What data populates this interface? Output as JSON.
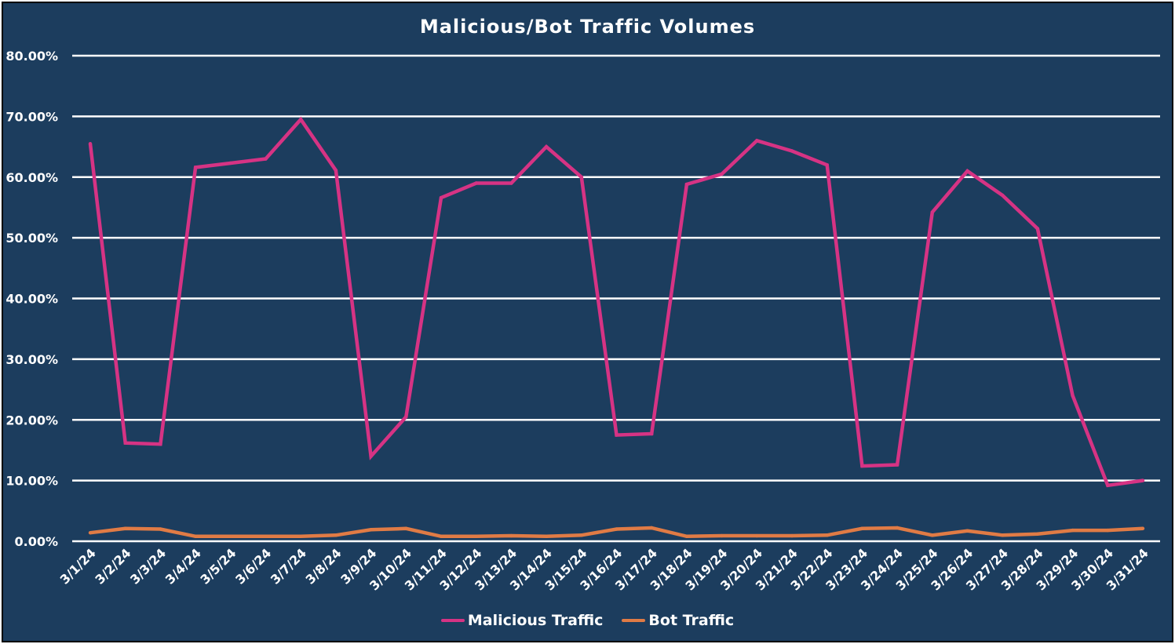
{
  "chart_data": {
    "type": "line",
    "title": "Malicious/Bot Traffic Volumes",
    "xlabel": "",
    "ylabel": "",
    "ylim": [
      0,
      0.8
    ],
    "yticks": [
      0,
      0.1,
      0.2,
      0.3,
      0.4,
      0.5,
      0.6,
      0.7,
      0.8
    ],
    "ytick_labels": [
      "0.00%",
      "10.00%",
      "20.00%",
      "30.00%",
      "40.00%",
      "50.00%",
      "60.00%",
      "70.00%",
      "80.00%"
    ],
    "grid": true,
    "legend_position": "bottom",
    "categories": [
      "3/1/24",
      "3/2/24",
      "3/3/24",
      "3/4/24",
      "3/5/24",
      "3/6/24",
      "3/7/24",
      "3/8/24",
      "3/9/24",
      "3/10/24",
      "3/11/24",
      "3/12/24",
      "3/13/24",
      "3/14/24",
      "3/15/24",
      "3/16/24",
      "3/17/24",
      "3/18/24",
      "3/19/24",
      "3/20/24",
      "3/21/24",
      "3/22/24",
      "3/23/24",
      "3/24/24",
      "3/25/24",
      "3/26/24",
      "3/27/24",
      "3/28/24",
      "3/29/24",
      "3/30/24",
      "3/31/24"
    ],
    "series": [
      {
        "name": "Malicious Traffic",
        "color": "#d63384",
        "values": [
          0.655,
          0.162,
          0.16,
          0.616,
          0.623,
          0.63,
          0.695,
          0.611,
          0.14,
          0.205,
          0.566,
          0.59,
          0.59,
          0.65,
          0.6,
          0.175,
          0.177,
          0.588,
          0.605,
          0.66,
          0.643,
          0.62,
          0.124,
          0.126,
          0.542,
          0.61,
          0.57,
          0.515,
          0.24,
          0.092,
          0.1
        ]
      },
      {
        "name": "Bot Traffic",
        "color": "#e07b45",
        "values": [
          0.014,
          0.021,
          0.02,
          0.008,
          0.008,
          0.008,
          0.008,
          0.01,
          0.019,
          0.021,
          0.008,
          0.008,
          0.009,
          0.008,
          0.01,
          0.02,
          0.022,
          0.008,
          0.009,
          0.009,
          0.009,
          0.01,
          0.021,
          0.022,
          0.01,
          0.017,
          0.01,
          0.012,
          0.018,
          0.018,
          0.021
        ]
      }
    ]
  },
  "colors": {
    "background": "#1c3d5e",
    "grid": "#ffffff",
    "text": "#ffffff"
  }
}
